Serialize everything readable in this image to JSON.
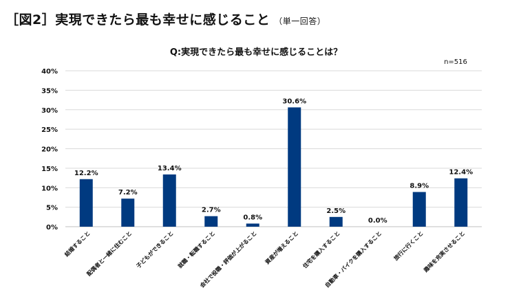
{
  "figure": {
    "label": "［図2］",
    "title": "実現できたら最も幸せに感じること",
    "note": "（単一回答）"
  },
  "chart_data": {
    "type": "bar",
    "title": "Q:実現できたら最も幸せに感じることは？",
    "sample_size": "n=516",
    "categories": [
      "結婚すること",
      "配偶者と一緒に住むこと",
      "子どもができること",
      "就職・転職すること",
      "会社で役職・評価が上がること",
      "資産が増えること",
      "住宅を購入すること",
      "自動車・バイクを購入すること",
      "旅行に行くこと",
      "趣味を充実させること"
    ],
    "values": [
      12.2,
      7.2,
      13.4,
      2.7,
      0.8,
      30.6,
      2.5,
      0.0,
      8.9,
      12.4
    ],
    "value_labels": [
      "12.2%",
      "7.2%",
      "13.4%",
      "2.7%",
      "0.8%",
      "30.6%",
      "2.5%",
      "0.0%",
      "8.9%",
      "12.4%"
    ],
    "y_ticks": [
      "0%",
      "5%",
      "10%",
      "15%",
      "20%",
      "25%",
      "30%",
      "35%",
      "40%"
    ],
    "ylim": [
      0,
      40
    ],
    "grid": true,
    "bar_color": "#003a80"
  }
}
